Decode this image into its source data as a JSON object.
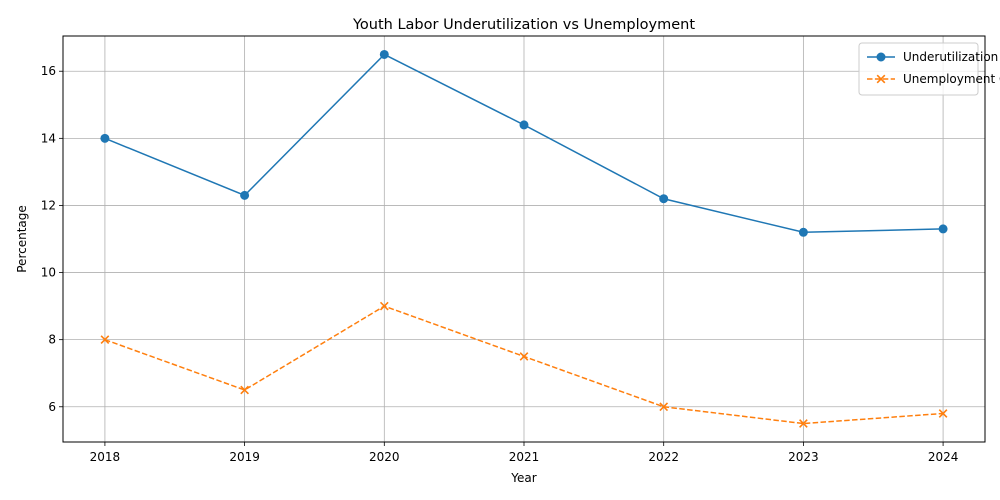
{
  "chart_data": {
    "type": "line",
    "title": "Youth Labor Underutilization vs Unemployment",
    "xlabel": "Year",
    "ylabel": "Percentage",
    "x": [
      "2018",
      "2019",
      "2020",
      "2021",
      "2022",
      "2023",
      "2024"
    ],
    "xlim": [
      2017.7,
      2024.3
    ],
    "ylim": [
      4.95,
      17.05
    ],
    "yticks": [
      6,
      8,
      10,
      12,
      14,
      16
    ],
    "grid": true,
    "legend": "top-right",
    "series": [
      {
        "name": "Underutilization",
        "values": [
          14.0,
          12.3,
          16.5,
          14.4,
          12.2,
          11.2,
          11.3
        ],
        "color": "#1f77b4",
        "line_style": "solid",
        "marker": "circle"
      },
      {
        "name": "Unemployment Only",
        "values": [
          8.0,
          6.5,
          9.0,
          7.5,
          6.0,
          5.5,
          5.8
        ],
        "color": "#ff7f0e",
        "line_style": "dashed",
        "marker": "x"
      }
    ]
  }
}
